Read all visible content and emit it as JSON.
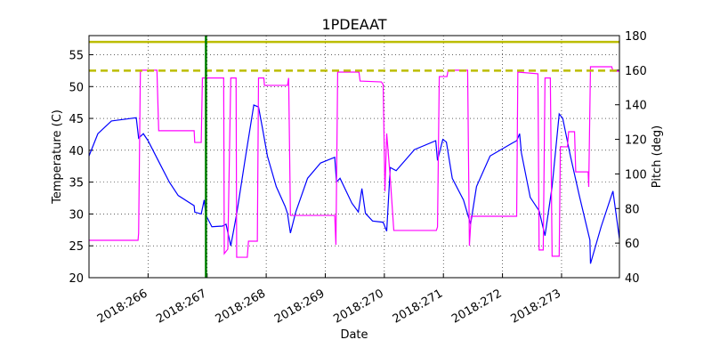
{
  "chart_data": {
    "type": "line",
    "title": "1PDEAAT",
    "x_label": "Date",
    "y_label": "Temperature (C)",
    "y2_label": "Pitch (deg)",
    "xlim": [
      265.0,
      273.98
    ],
    "xticks": [
      {
        "value": 266,
        "label": "2018:266"
      },
      {
        "value": 267,
        "label": "2018:267"
      },
      {
        "value": 268,
        "label": "2018:268"
      },
      {
        "value": 269,
        "label": "2018:269"
      },
      {
        "value": 270,
        "label": "2018:270"
      },
      {
        "value": 271,
        "label": "2018:271"
      },
      {
        "value": 272,
        "label": "2018:272"
      },
      {
        "value": 273,
        "label": "2018:273"
      }
    ],
    "ylim": [
      20,
      58
    ],
    "yticks": [
      20,
      25,
      30,
      35,
      40,
      45,
      50,
      55
    ],
    "y2lim": [
      40,
      180
    ],
    "y2ticks": [
      40,
      60,
      80,
      100,
      120,
      140,
      160,
      180
    ],
    "y2_color": "#ff00ff",
    "grid": true,
    "hlines": [
      {
        "value": 57,
        "color": "#bcbd00",
        "dashed": false
      },
      {
        "value": 52.5,
        "color": "#bcbd00",
        "dashed": true
      }
    ],
    "vlines": [
      {
        "value": 266.98,
        "color": "#007f00"
      }
    ],
    "series": [
      {
        "name": "Temperature",
        "color": "#0000ff",
        "axis": "y",
        "x": [
          265.0,
          265.15,
          265.38,
          265.8,
          265.84,
          265.92,
          266.0,
          266.21,
          266.36,
          266.51,
          266.78,
          266.79,
          266.9,
          266.95,
          266.98,
          267.08,
          267.26,
          267.32,
          267.4,
          267.5,
          267.64,
          267.79,
          267.87,
          267.94,
          268.02,
          268.17,
          268.32,
          268.36,
          268.41,
          268.5,
          268.7,
          268.92,
          269.16,
          269.19,
          269.25,
          269.45,
          269.56,
          269.62,
          269.68,
          269.8,
          269.98,
          270.04,
          270.1,
          270.2,
          270.51,
          270.87,
          270.9,
          270.99,
          271.05,
          271.15,
          271.34,
          271.46,
          271.56,
          271.79,
          272.16,
          272.24,
          272.29,
          272.32,
          272.47,
          272.62,
          272.72,
          272.84,
          272.96,
          273.02,
          273.15,
          273.3,
          273.48,
          273.49,
          273.67,
          273.87,
          273.98
        ],
        "values": [
          39.1,
          42.6,
          44.6,
          45.1,
          41.9,
          42.6,
          41.5,
          37.7,
          35.0,
          32.9,
          31.3,
          30.3,
          30.0,
          32.2,
          29.8,
          28.0,
          28.1,
          28.4,
          25.0,
          30.0,
          38.4,
          47.1,
          46.8,
          43.3,
          39.1,
          34.3,
          31.2,
          30.1,
          27.0,
          30.3,
          35.6,
          38.0,
          38.9,
          35.0,
          35.6,
          31.7,
          30.3,
          34.0,
          30.1,
          28.9,
          28.7,
          27.3,
          37.3,
          36.8,
          40.1,
          41.5,
          38.4,
          41.7,
          41.3,
          35.6,
          32.2,
          28.4,
          34.3,
          39.1,
          41.1,
          41.5,
          42.6,
          39.6,
          32.6,
          30.5,
          26.6,
          34.3,
          45.7,
          45.0,
          39.1,
          32.9,
          25.9,
          22.2,
          28.0,
          33.6,
          26.1
        ]
      },
      {
        "name": "Pitch",
        "color": "#ff00ff",
        "axis": "y2",
        "x": [
          265.0,
          265.83,
          265.84,
          265.87,
          266.15,
          266.18,
          266.78,
          266.79,
          266.9,
          266.92,
          267.28,
          267.29,
          267.35,
          267.4,
          267.49,
          267.5,
          267.68,
          267.7,
          267.85,
          267.87,
          267.96,
          267.97,
          268.36,
          268.38,
          268.41,
          269.16,
          269.18,
          269.21,
          269.57,
          269.59,
          269.95,
          269.98,
          270.01,
          270.04,
          270.1,
          270.16,
          270.88,
          270.9,
          270.93,
          271.06,
          271.08,
          271.41,
          271.44,
          271.47,
          272.24,
          272.26,
          272.6,
          272.62,
          272.69,
          272.72,
          272.81,
          272.84,
          272.96,
          272.98,
          273.1,
          273.12,
          273.22,
          273.24,
          273.45,
          273.46,
          273.49,
          273.85,
          273.87,
          273.98
        ],
        "values": [
          61.6,
          61.6,
          65.7,
          160,
          160,
          125,
          125,
          118.2,
          118.2,
          155.5,
          155.5,
          53.9,
          56.5,
          155.5,
          155.5,
          51.8,
          51.8,
          61.1,
          61.1,
          155.5,
          155.5,
          151.2,
          151.2,
          155.5,
          76,
          76,
          59,
          158.9,
          158.9,
          153.7,
          153.2,
          151.7,
          89.9,
          123.4,
          97.6,
          67.3,
          67.3,
          69.3,
          156.3,
          156.3,
          160,
          160,
          58.5,
          75.5,
          75.5,
          158.9,
          157.9,
          56,
          56,
          155.5,
          155.5,
          52.4,
          52.4,
          115.7,
          115.7,
          124.4,
          124.4,
          101.2,
          101.2,
          92.5,
          162,
          162,
          159.4,
          159.4
        ]
      }
    ]
  }
}
